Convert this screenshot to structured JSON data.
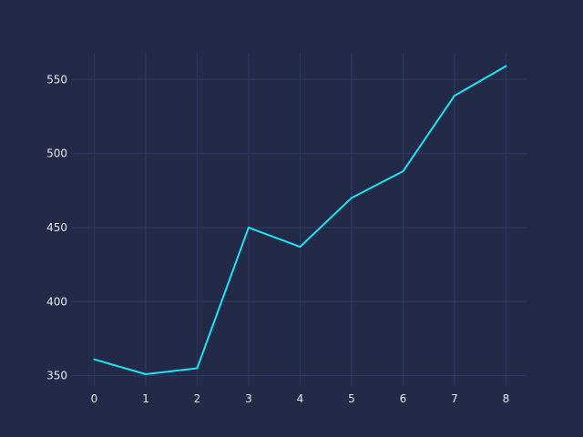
{
  "colors": {
    "background": "#222a47",
    "grid": "#2c3a63",
    "text": "#e6e8ef",
    "series": "#18e6f5"
  },
  "chart_data": {
    "type": "line",
    "title": "",
    "xlabel": "",
    "ylabel": "",
    "x": [
      0,
      1,
      2,
      3,
      4,
      5,
      6,
      7,
      8
    ],
    "series": [
      {
        "values": [
          361,
          351,
          355,
          450,
          437,
          470,
          488,
          539,
          559
        ]
      }
    ],
    "xticks": [
      "0",
      "1",
      "2",
      "3",
      "4",
      "5",
      "6",
      "7",
      "8"
    ],
    "yticks": [
      "350",
      "400",
      "450",
      "500",
      "550"
    ],
    "xlim": [
      -0.45,
      8.4
    ],
    "ylim": [
      343,
      568
    ],
    "grid": true,
    "legend": "none"
  }
}
